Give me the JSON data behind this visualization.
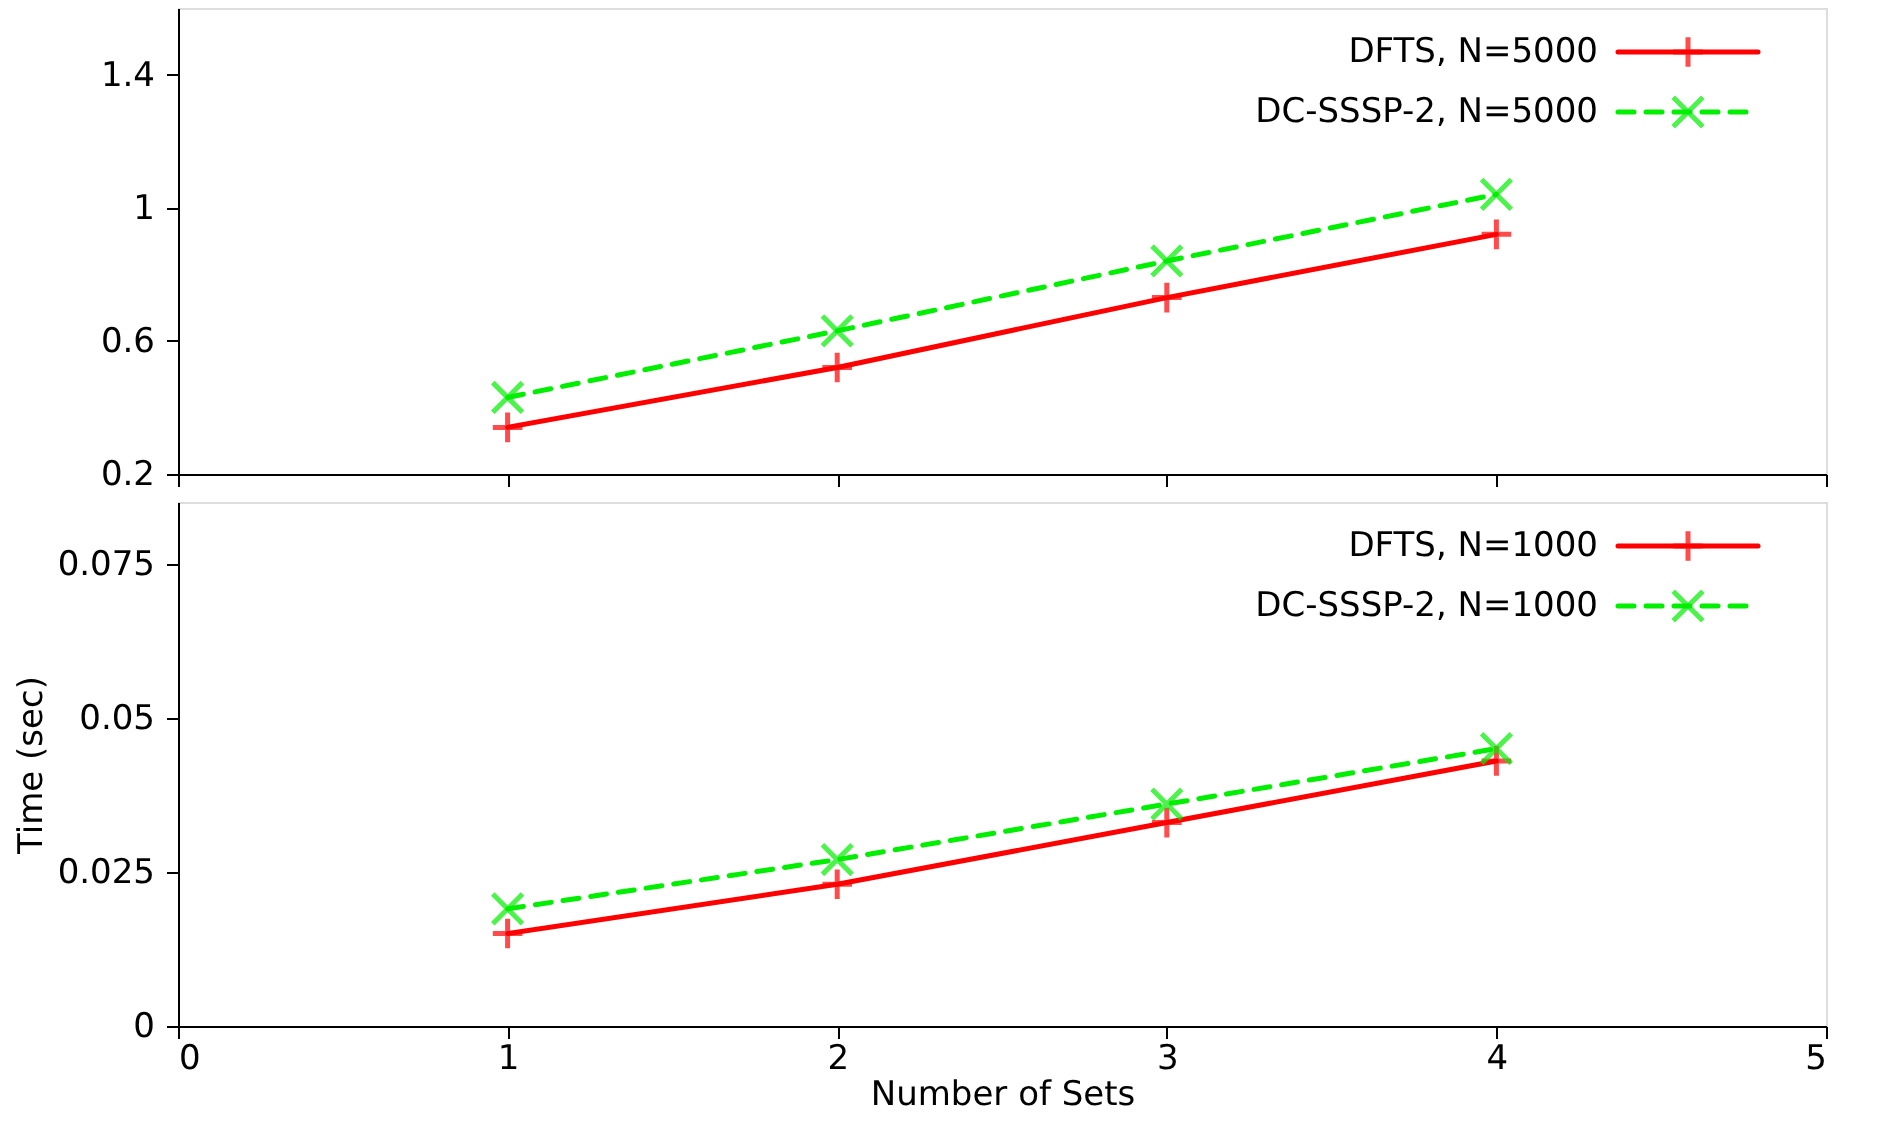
{
  "chart_data": [
    {
      "type": "line",
      "x": [
        1,
        2,
        3,
        4
      ],
      "xlim": [
        0,
        5
      ],
      "xticks": [
        0,
        1,
        2,
        3,
        4,
        5
      ],
      "ylim": [
        0.2,
        1.6
      ],
      "yticks": [
        0.2,
        0.6,
        1,
        1.4
      ],
      "tick_labels": "y",
      "grid": false,
      "legend": "top right",
      "series": [
        {
          "name": "DFTS, N=5000",
          "color": "#ff0000",
          "values": [
            0.34,
            0.52,
            0.73,
            0.92
          ],
          "marker": "plus",
          "line_style": "solid"
        },
        {
          "name": "DC-SSSP-2, N=5000",
          "color": "#00ee00",
          "values": [
            0.43,
            0.63,
            0.84,
            1.04
          ],
          "marker": "cross",
          "line_style": "dashed"
        }
      ]
    },
    {
      "type": "line",
      "x": [
        1,
        2,
        3,
        4
      ],
      "xlim": [
        0,
        5
      ],
      "xticks": [
        0,
        1,
        2,
        3,
        4,
        5
      ],
      "ylim": [
        0,
        0.085
      ],
      "yticks": [
        0,
        0.025,
        0.05,
        0.075
      ],
      "xlabel": "Number of Sets",
      "ylabel": "Time (sec)",
      "grid": false,
      "legend": "top right",
      "series": [
        {
          "name": "DFTS, N=1000",
          "color": "#ff0000",
          "values": [
            0.015,
            0.023,
            0.033,
            0.043
          ],
          "marker": "plus",
          "line_style": "solid"
        },
        {
          "name": "DC-SSSP-2, N=1000",
          "color": "#00ee00",
          "values": [
            0.019,
            0.027,
            0.036,
            0.045
          ],
          "marker": "cross",
          "line_style": "dashed"
        }
      ]
    }
  ]
}
